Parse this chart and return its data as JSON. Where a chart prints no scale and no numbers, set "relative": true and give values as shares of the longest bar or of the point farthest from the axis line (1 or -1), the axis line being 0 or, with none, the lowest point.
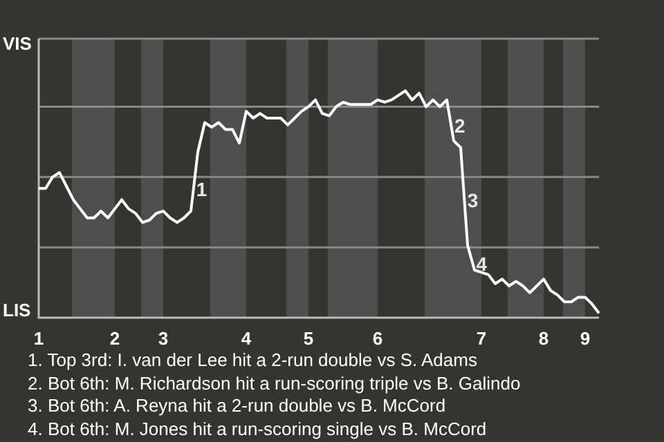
{
  "chart_data": {
    "type": "line",
    "relative": true,
    "categories": [
      "1",
      null,
      null,
      null,
      null,
      null,
      null,
      null,
      null,
      null,
      null,
      "2",
      null,
      null,
      null,
      null,
      null,
      null,
      "3",
      null,
      null,
      null,
      null,
      null,
      null,
      null,
      null,
      null,
      null,
      null,
      "4",
      null,
      null,
      null,
      null,
      null,
      null,
      null,
      null,
      "5",
      null,
      null,
      null,
      null,
      null,
      null,
      null,
      null,
      null,
      "6",
      null,
      null,
      null,
      null,
      null,
      null,
      null,
      null,
      null,
      null,
      null,
      null,
      null,
      null,
      "7",
      null,
      null,
      null,
      null,
      null,
      null,
      null,
      null,
      "8",
      null,
      null,
      null,
      null,
      null,
      "9",
      null,
      null
    ],
    "series": [
      {
        "color": "#ffffff",
        "values": [
          0.57,
          0.57,
          0.62,
          0.64,
          0.58,
          0.52,
          0.48,
          0.44,
          0.44,
          0.47,
          0.44,
          0.48,
          0.52,
          0.48,
          0.46,
          0.42,
          0.43,
          0.46,
          0.47,
          0.44,
          0.42,
          0.44,
          0.47,
          0.73,
          0.86,
          0.84,
          0.86,
          0.83,
          0.83,
          0.77,
          0.91,
          0.88,
          0.9,
          0.88,
          0.88,
          0.88,
          0.85,
          0.88,
          0.91,
          0.93,
          0.96,
          0.9,
          0.89,
          0.93,
          0.95,
          0.94,
          0.94,
          0.94,
          0.94,
          0.96,
          0.95,
          0.96,
          0.98,
          1,
          0.96,
          0.99,
          0.93,
          0.96,
          0.93,
          0.96,
          0.78,
          0.75,
          0.32,
          0.21,
          0.2,
          0.19,
          0.15,
          0.17,
          0.14,
          0.16,
          0.14,
          0.11,
          0.14,
          0.17,
          0.12,
          0.1,
          0.07,
          0.07,
          0.09,
          0.09,
          0.06,
          0.02
        ]
      }
    ],
    "legend": false,
    "marker": "none",
    "line_style": "solid",
    "ref_lines": [
      {
        "axis": "y",
        "value": 0.31,
        "color": "#8a8987"
      },
      {
        "axis": "y",
        "value": 0.62,
        "color": "#8a8987"
      },
      {
        "axis": "y",
        "value": 0.93,
        "color": "#8a8987"
      },
      {
        "axis": "y",
        "value": 1.23,
        "color": "#8a8987"
      }
    ],
    "annotations": [
      "VIS",
      "LIS",
      {
        "text": "1",
        "y": 0.56
      },
      {
        "text": "2",
        "y": 0.84
      },
      {
        "text": "3",
        "y": 0.51
      },
      {
        "text": "4",
        "y": 0.23
      },
      "1. Top 3rd: I. van der Lee hit a 2-run double vs S. Adams",
      "2. Bot 6th: M. Richardson hit a run-scoring triple vs B. Galindo",
      "3. Bot 6th: A. Reyna hit a 2-run double vs B. McCord",
      "4. Bot 6th: M. Jones hit a run-scoring single vs B. McCord"
    ]
  }
}
